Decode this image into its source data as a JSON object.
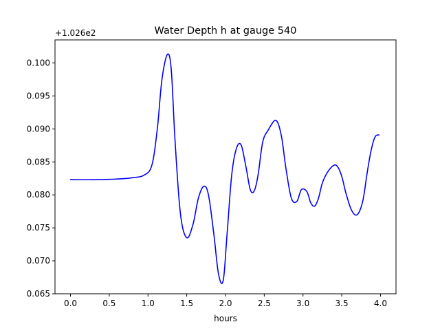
{
  "chart_data": {
    "type": "line",
    "title": "Water Depth h at gauge 540",
    "xlabel": "hours",
    "ylabel": "",
    "offset_label": "+1.026e2",
    "xlim": [
      -0.2,
      4.2
    ],
    "ylim": [
      0.065,
      0.1035
    ],
    "xticks": [
      0.0,
      0.5,
      1.0,
      1.5,
      2.0,
      2.5,
      3.0,
      3.5,
      4.0
    ],
    "xtick_labels": [
      "0.0",
      "0.5",
      "1.0",
      "1.5",
      "2.0",
      "2.5",
      "3.0",
      "3.5",
      "4.0"
    ],
    "yticks": [
      0.065,
      0.07,
      0.075,
      0.08,
      0.085,
      0.09,
      0.095,
      0.1
    ],
    "ytick_labels": [
      "0.065",
      "0.070",
      "0.075",
      "0.080",
      "0.085",
      "0.090",
      "0.095",
      "0.100"
    ],
    "grid": false,
    "legend": "none",
    "series": [
      {
        "color": "#0000ff",
        "x": [
          0.0,
          0.3,
          0.6,
          0.8,
          0.95,
          1.05,
          1.12,
          1.18,
          1.25,
          1.3,
          1.35,
          1.42,
          1.5,
          1.58,
          1.65,
          1.72,
          1.78,
          1.85,
          1.91,
          1.97,
          2.02,
          2.08,
          2.14,
          2.2,
          2.26,
          2.32,
          2.37,
          2.42,
          2.48,
          2.55,
          2.65,
          2.72,
          2.78,
          2.85,
          2.92,
          2.98,
          3.05,
          3.1,
          3.15,
          3.2,
          3.25,
          3.32,
          3.4,
          3.45,
          3.5,
          3.56,
          3.63,
          3.7,
          3.77,
          3.83,
          3.88,
          3.93,
          3.98
        ],
        "y": [
          0.0823,
          0.0823,
          0.0824,
          0.0826,
          0.083,
          0.0845,
          0.09,
          0.0975,
          0.1013,
          0.099,
          0.088,
          0.077,
          0.0735,
          0.0755,
          0.0795,
          0.0813,
          0.08,
          0.074,
          0.068,
          0.067,
          0.074,
          0.083,
          0.087,
          0.0876,
          0.0845,
          0.0808,
          0.0806,
          0.083,
          0.088,
          0.0898,
          0.0913,
          0.089,
          0.084,
          0.0795,
          0.079,
          0.0808,
          0.0805,
          0.0788,
          0.0783,
          0.0795,
          0.0818,
          0.0835,
          0.0845,
          0.0842,
          0.0828,
          0.08,
          0.0776,
          0.077,
          0.079,
          0.0835,
          0.0868,
          0.0888,
          0.0891
        ]
      }
    ]
  }
}
